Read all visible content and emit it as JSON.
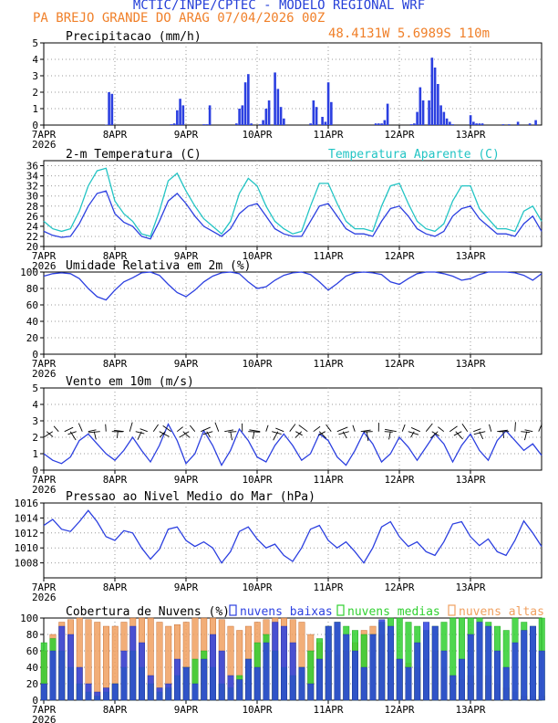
{
  "header": {
    "title": "MCTIC/INPE/CPTEC - MODELO REGIONAL WRF",
    "location_date": "PA BREJO GRANDE DO ARAG   07/04/2026 00Z",
    "coords": "48.4131W 5.6989S 110m"
  },
  "colors": {
    "blue": "#2b3fe0",
    "cyan": "#22c4c4",
    "orange": "#f0a060",
    "green": "#30d030",
    "title_blue": "#2640d8",
    "title_orange": "#f0802a"
  },
  "x_axis": {
    "days": [
      "7APR",
      "8APR",
      "9APR",
      "10APR",
      "11APR",
      "12APR",
      "13APR"
    ],
    "year": "2026",
    "hours_total": 168
  },
  "chart_data": [
    {
      "id": "precip",
      "type": "bar",
      "title": "Precipitacao (mm/h)",
      "ylim": [
        0,
        5
      ],
      "yticks": [
        0,
        1,
        2,
        3,
        4,
        5
      ],
      "grid": true,
      "x_hours": [
        21,
        22,
        23,
        43,
        44,
        45,
        46,
        47,
        54,
        55,
        56,
        65,
        66,
        67,
        68,
        69,
        70,
        73,
        74,
        75,
        76,
        78,
        79,
        80,
        81,
        90,
        91,
        92,
        94,
        95,
        96,
        97,
        112,
        113,
        114,
        115,
        116,
        124,
        125,
        126,
        127,
        128,
        130,
        131,
        132,
        133,
        134,
        135,
        136,
        137,
        138,
        144,
        145,
        146,
        147,
        148,
        155,
        157,
        160,
        164,
        166
      ],
      "values": [
        0.02,
        2.0,
        1.9,
        0.05,
        0.1,
        0.9,
        1.6,
        1.2,
        0.05,
        0.05,
        1.2,
        0.1,
        1.0,
        1.2,
        2.6,
        3.1,
        0.1,
        0.05,
        0.3,
        1.0,
        1.5,
        3.2,
        2.2,
        1.1,
        0.4,
        0.1,
        1.5,
        1.1,
        0.5,
        0.2,
        2.6,
        1.4,
        0.1,
        0.1,
        0.1,
        0.3,
        1.3,
        0.05,
        0.1,
        0.8,
        2.3,
        1.5,
        1.5,
        4.1,
        3.5,
        2.5,
        1.2,
        0.8,
        0.4,
        0.2,
        0.05,
        0.6,
        0.2,
        0.1,
        0.1,
        0.1,
        0.05,
        0.05,
        0.2,
        0.1,
        0.3
      ]
    },
    {
      "id": "temp",
      "type": "line",
      "title": "2-m Temperatura (C)",
      "ylim": [
        20,
        37
      ],
      "yticks": [
        20,
        22,
        24,
        26,
        28,
        30,
        32,
        34,
        36
      ],
      "grid": true,
      "x_hours": [
        0,
        3,
        6,
        9,
        12,
        15,
        18,
        21,
        24,
        27,
        30,
        33,
        36,
        39,
        42,
        45,
        48,
        51,
        54,
        57,
        60,
        63,
        66,
        69,
        72,
        75,
        78,
        81,
        84,
        87,
        90,
        93,
        96,
        99,
        102,
        105,
        108,
        111,
        114,
        117,
        120,
        123,
        126,
        129,
        132,
        135,
        138,
        141,
        144,
        147,
        150,
        153,
        156,
        159,
        162,
        165,
        168
      ],
      "series": [
        {
          "name": "2-m Temperatura (C)",
          "values": [
            23.0,
            22.2,
            21.8,
            22.0,
            24.5,
            28.0,
            30.5,
            31.0,
            26.5,
            24.8,
            24.0,
            22.0,
            21.5,
            25.0,
            29.0,
            30.5,
            28.5,
            26.0,
            24.0,
            23.0,
            22.0,
            23.5,
            26.5,
            28.0,
            28.5,
            26.0,
            23.5,
            22.5,
            22.0,
            22.0,
            25.0,
            28.0,
            28.5,
            26.0,
            23.5,
            22.5,
            22.5,
            22.0,
            25.0,
            27.5,
            28.0,
            26.0,
            23.5,
            22.5,
            22.0,
            23.0,
            26.0,
            27.5,
            28.0,
            25.5,
            24.0,
            22.5,
            22.5,
            22.0,
            24.5,
            26.0,
            23.0
          ]
        },
        {
          "name": "Temperatura Aparente (C)",
          "values": [
            25.0,
            23.5,
            23.0,
            23.5,
            27.0,
            32.0,
            35.0,
            35.5,
            29.0,
            26.5,
            25.0,
            22.5,
            22.0,
            27.0,
            33.0,
            34.5,
            31.0,
            28.0,
            25.5,
            24.0,
            22.5,
            25.0,
            30.5,
            33.5,
            32.0,
            28.0,
            25.0,
            23.5,
            22.5,
            23.0,
            28.0,
            32.5,
            32.5,
            28.5,
            25.0,
            23.5,
            23.5,
            23.0,
            28.0,
            32.0,
            32.5,
            28.5,
            25.0,
            23.5,
            23.0,
            24.5,
            29.0,
            32.0,
            32.0,
            27.5,
            25.5,
            23.5,
            23.5,
            23.0,
            27.0,
            28.0,
            25.0
          ]
        }
      ]
    },
    {
      "id": "rh",
      "type": "line",
      "title": "Umidade Relativa em 2m (%)",
      "ylim": [
        0,
        100
      ],
      "yticks": [
        0,
        20,
        40,
        60,
        80,
        100
      ],
      "grid": true,
      "x_hours": [
        0,
        3,
        6,
        9,
        12,
        15,
        18,
        21,
        24,
        27,
        30,
        33,
        36,
        39,
        42,
        45,
        48,
        51,
        54,
        57,
        60,
        63,
        66,
        69,
        72,
        75,
        78,
        81,
        84,
        87,
        90,
        93,
        96,
        99,
        102,
        105,
        108,
        111,
        114,
        117,
        120,
        123,
        126,
        129,
        132,
        135,
        138,
        141,
        144,
        147,
        150,
        153,
        156,
        159,
        162,
        165,
        168
      ],
      "series": [
        {
          "name": "Umidade Relativa",
          "values": [
            95,
            98,
            99,
            98,
            92,
            80,
            70,
            66,
            78,
            88,
            93,
            99,
            100,
            96,
            85,
            75,
            70,
            78,
            88,
            95,
            99,
            100,
            98,
            88,
            80,
            82,
            90,
            96,
            99,
            100,
            97,
            88,
            78,
            86,
            95,
            99,
            100,
            99,
            97,
            88,
            85,
            92,
            98,
            100,
            100,
            98,
            95,
            90,
            92,
            97,
            100,
            100,
            100,
            99,
            96,
            90,
            98
          ]
        }
      ]
    },
    {
      "id": "wind",
      "type": "line",
      "title": "Vento em 10m (m/s)",
      "ylim": [
        0,
        5
      ],
      "yticks": [
        0,
        1,
        2,
        3,
        4,
        5
      ],
      "grid": true,
      "x_hours": [
        0,
        3,
        6,
        9,
        12,
        15,
        18,
        21,
        24,
        27,
        30,
        33,
        36,
        39,
        42,
        45,
        48,
        51,
        54,
        57,
        60,
        63,
        66,
        69,
        72,
        75,
        78,
        81,
        84,
        87,
        90,
        93,
        96,
        99,
        102,
        105,
        108,
        111,
        114,
        117,
        120,
        123,
        126,
        129,
        132,
        135,
        138,
        141,
        144,
        147,
        150,
        153,
        156,
        159,
        162,
        165,
        168
      ],
      "series": [
        {
          "name": "Vento",
          "values": [
            1.0,
            0.6,
            0.4,
            0.8,
            1.8,
            2.2,
            1.6,
            1.0,
            0.6,
            1.2,
            2.0,
            1.2,
            0.5,
            1.5,
            2.8,
            1.8,
            0.4,
            1.0,
            2.4,
            1.5,
            0.3,
            1.2,
            2.5,
            1.8,
            0.8,
            0.5,
            1.5,
            2.2,
            1.5,
            0.6,
            1.0,
            2.2,
            1.8,
            0.8,
            0.3,
            1.2,
            2.3,
            1.6,
            0.5,
            1.0,
            2.0,
            1.4,
            0.6,
            1.4,
            2.2,
            1.6,
            0.5,
            1.5,
            2.2,
            1.2,
            0.6,
            1.8,
            2.4,
            1.8,
            1.2,
            1.6,
            0.9
          ]
        }
      ]
    },
    {
      "id": "pressure",
      "type": "line",
      "title": "Pressao ao Nivel Medio do Mar (hPa)",
      "ylim": [
        1006,
        1016
      ],
      "yticks": [
        1008,
        1010,
        1012,
        1014,
        1016
      ],
      "grid": true,
      "x_hours": [
        0,
        3,
        6,
        9,
        12,
        15,
        18,
        21,
        24,
        27,
        30,
        33,
        36,
        39,
        42,
        45,
        48,
        51,
        54,
        57,
        60,
        63,
        66,
        69,
        72,
        75,
        78,
        81,
        84,
        87,
        90,
        93,
        96,
        99,
        102,
        105,
        108,
        111,
        114,
        117,
        120,
        123,
        126,
        129,
        132,
        135,
        138,
        141,
        144,
        147,
        150,
        153,
        156,
        159,
        162,
        165,
        168
      ],
      "series": [
        {
          "name": "Pressao",
          "values": [
            1013.0,
            1013.8,
            1012.5,
            1012.2,
            1013.5,
            1015.0,
            1013.5,
            1011.5,
            1011.0,
            1012.3,
            1012.0,
            1010.0,
            1008.5,
            1009.8,
            1012.5,
            1012.8,
            1011.0,
            1010.2,
            1010.8,
            1010.0,
            1008.0,
            1009.5,
            1012.2,
            1012.8,
            1011.2,
            1010.0,
            1010.5,
            1009.0,
            1008.2,
            1010.0,
            1012.5,
            1013.0,
            1011.0,
            1010.0,
            1010.8,
            1009.5,
            1008.0,
            1010.0,
            1012.8,
            1013.5,
            1011.5,
            1010.2,
            1010.8,
            1009.5,
            1009.0,
            1010.8,
            1013.2,
            1013.5,
            1011.5,
            1010.3,
            1011.2,
            1009.5,
            1009.0,
            1011.0,
            1013.6,
            1012.0,
            1010.2
          ]
        }
      ]
    },
    {
      "id": "clouds",
      "type": "bar",
      "title": "Cobertura de Nuvens (%)",
      "ylim": [
        0,
        100
      ],
      "yticks": [
        0,
        20,
        40,
        60,
        80,
        100
      ],
      "grid": true,
      "legend": [
        "nuvens baixas",
        "nuvens medias",
        "nuvens altas"
      ],
      "x_hours": [
        0,
        3,
        6,
        9,
        12,
        15,
        18,
        21,
        24,
        27,
        30,
        33,
        36,
        39,
        42,
        45,
        48,
        51,
        54,
        57,
        60,
        63,
        66,
        69,
        72,
        75,
        78,
        81,
        84,
        87,
        90,
        93,
        96,
        99,
        102,
        105,
        108,
        111,
        114,
        117,
        120,
        123,
        126,
        129,
        132,
        135,
        138,
        141,
        144,
        147,
        150,
        153,
        156,
        159,
        162,
        165,
        168
      ],
      "series": [
        {
          "name": "nuvens altas",
          "values": [
            60,
            80,
            95,
            98,
            100,
            98,
            95,
            90,
            90,
            95,
            100,
            100,
            100,
            95,
            90,
            92,
            95,
            100,
            100,
            100,
            98,
            90,
            85,
            90,
            95,
            98,
            100,
            100,
            98,
            95,
            80,
            70,
            60,
            55,
            60,
            70,
            85,
            90,
            80,
            60,
            50,
            45,
            40,
            50,
            60,
            40,
            30,
            25,
            30,
            40,
            30,
            20,
            15,
            10,
            5,
            5,
            5
          ]
        },
        {
          "name": "nuvens medias",
          "values": [
            70,
            75,
            60,
            40,
            20,
            10,
            5,
            10,
            20,
            40,
            60,
            40,
            20,
            10,
            15,
            30,
            40,
            50,
            60,
            40,
            20,
            15,
            30,
            50,
            70,
            80,
            60,
            40,
            30,
            40,
            60,
            75,
            90,
            95,
            90,
            85,
            80,
            80,
            95,
            100,
            100,
            95,
            90,
            85,
            90,
            95,
            100,
            100,
            100,
            100,
            95,
            90,
            85,
            100,
            95,
            90,
            100
          ]
        },
        {
          "name": "nuvens baixas",
          "values": [
            20,
            60,
            90,
            80,
            40,
            20,
            10,
            15,
            20,
            60,
            90,
            70,
            30,
            15,
            20,
            50,
            40,
            20,
            50,
            80,
            60,
            30,
            25,
            50,
            40,
            70,
            95,
            90,
            70,
            40,
            20,
            50,
            90,
            95,
            80,
            60,
            40,
            80,
            98,
            90,
            50,
            40,
            70,
            95,
            90,
            60,
            30,
            50,
            80,
            95,
            90,
            60,
            40,
            70,
            85,
            90,
            60
          ]
        }
      ]
    }
  ]
}
